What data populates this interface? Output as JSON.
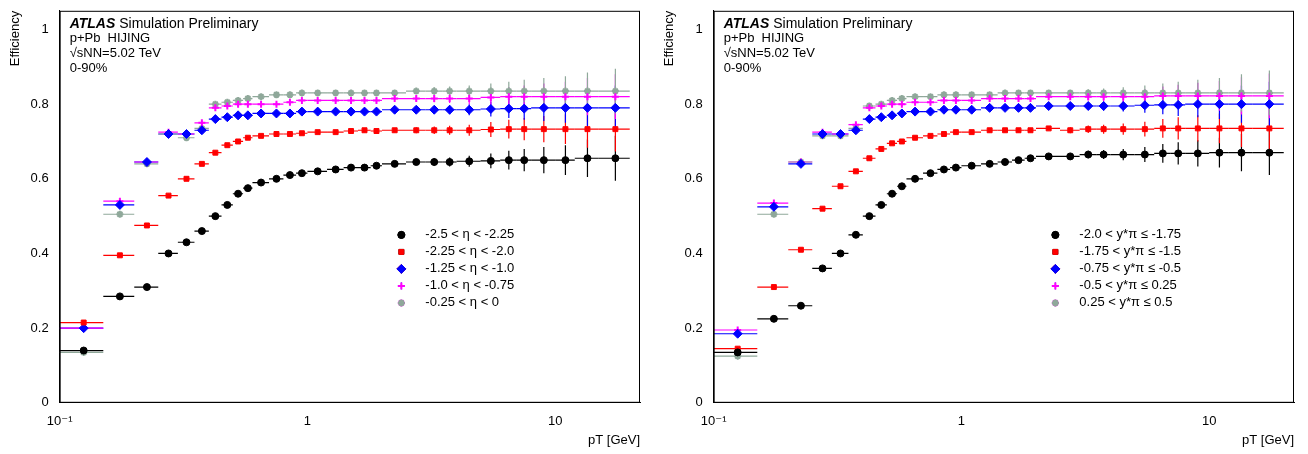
{
  "chart_data": [
    {
      "type": "scatter",
      "x_label": "pT [GeV]",
      "y_label": "Efficiency",
      "annotations": [
        "ATLAS Simulation Preliminary",
        "p+Pb  HIJING",
        "√sNN=5.02 TeV",
        "0-90%"
      ],
      "log": "x",
      "grid": false,
      "legend": "lower right",
      "xlim": [
        0.1,
        22
      ],
      "xticks": [
        {
          "value": 0.1,
          "label": "10⁻¹"
        },
        1,
        10
      ],
      "ylim": [
        0,
        1.05
      ],
      "yticks": [
        0,
        0.2,
        0.4,
        0.6,
        0.8,
        1
      ],
      "x": [
        0.125,
        0.175,
        0.225,
        0.275,
        0.325,
        0.375,
        0.425,
        0.475,
        0.525,
        0.575,
        0.65,
        0.75,
        0.85,
        0.95,
        1.1,
        1.3,
        1.5,
        1.7,
        1.9,
        2.25,
        2.75,
        3.25,
        3.75,
        4.5,
        5.5,
        6.5,
        7.5,
        9,
        11,
        13.5,
        17.5
      ],
      "xerr": [
        0.025,
        0.025,
        0.025,
        0.025,
        0.025,
        0.025,
        0.025,
        0.025,
        0.025,
        0.025,
        0.05,
        0.05,
        0.05,
        0.05,
        0.1,
        0.1,
        0.1,
        0.1,
        0.1,
        0.25,
        0.25,
        0.25,
        0.25,
        0.5,
        0.5,
        0.5,
        0.5,
        1,
        1,
        1.5,
        2.5
      ],
      "series": [
        {
          "name": "-2.5 < η < -2.25",
          "color": "#000000",
          "marker": "circle",
          "values": [
            0.14,
            0.285,
            0.31,
            0.4,
            0.43,
            0.46,
            0.5,
            0.53,
            0.56,
            0.575,
            0.59,
            0.6,
            0.61,
            0.615,
            0.62,
            0.625,
            0.63,
            0.63,
            0.635,
            0.64,
            0.645,
            0.645,
            0.645,
            0.647,
            0.648,
            0.65,
            0.65,
            0.65,
            0.65,
            0.655,
            0.655
          ],
          "yerr": [
            0.005,
            0.005,
            0.005,
            0.005,
            0.005,
            0.005,
            0.005,
            0.005,
            0.005,
            0.005,
            0.005,
            0.005,
            0.005,
            0.005,
            0.005,
            0.005,
            0.005,
            0.005,
            0.005,
            0.005,
            0.008,
            0.01,
            0.012,
            0.015,
            0.02,
            0.025,
            0.03,
            0.035,
            0.04,
            0.05,
            0.06
          ]
        },
        {
          "name": "-2.25 < η < -2.0",
          "color": "#ff0000",
          "marker": "square",
          "values": [
            0.215,
            0.395,
            0.475,
            0.555,
            0.6,
            0.64,
            0.67,
            0.69,
            0.7,
            0.71,
            0.715,
            0.72,
            0.72,
            0.722,
            0.725,
            0.725,
            0.728,
            0.73,
            0.728,
            0.73,
            0.73,
            0.73,
            0.73,
            0.73,
            0.732,
            0.733,
            0.733,
            0.733,
            0.733,
            0.733,
            0.733
          ],
          "yerr": [
            0.005,
            0.005,
            0.005,
            0.005,
            0.005,
            0.005,
            0.005,
            0.005,
            0.005,
            0.005,
            0.005,
            0.005,
            0.005,
            0.005,
            0.005,
            0.005,
            0.005,
            0.005,
            0.005,
            0.005,
            0.008,
            0.01,
            0.012,
            0.015,
            0.02,
            0.025,
            0.03,
            0.035,
            0.04,
            0.05,
            0.06
          ]
        },
        {
          "name": "-1.25 < η < -1.0",
          "color": "#0000ff",
          "marker": "diamond",
          "values": [
            0.2,
            0.53,
            0.645,
            0.72,
            0.72,
            0.73,
            0.76,
            0.765,
            0.77,
            0.77,
            0.775,
            0.775,
            0.775,
            0.78,
            0.78,
            0.78,
            0.78,
            0.78,
            0.78,
            0.785,
            0.785,
            0.785,
            0.785,
            0.785,
            0.787,
            0.788,
            0.788,
            0.79,
            0.79,
            0.79,
            0.79
          ],
          "yerr": [
            0.005,
            0.005,
            0.005,
            0.005,
            0.005,
            0.005,
            0.005,
            0.005,
            0.005,
            0.005,
            0.005,
            0.005,
            0.005,
            0.005,
            0.005,
            0.005,
            0.005,
            0.005,
            0.005,
            0.005,
            0.008,
            0.01,
            0.012,
            0.015,
            0.02,
            0.025,
            0.03,
            0.035,
            0.04,
            0.05,
            0.06
          ]
        },
        {
          "name": "-1.0 < η < -0.75",
          "color": "#ff00ff",
          "marker": "plus",
          "values": [
            0.2,
            0.54,
            0.645,
            0.725,
            0.72,
            0.75,
            0.79,
            0.795,
            0.8,
            0.8,
            0.8,
            0.8,
            0.805,
            0.81,
            0.81,
            0.81,
            0.81,
            0.81,
            0.81,
            0.815,
            0.815,
            0.815,
            0.815,
            0.815,
            0.818,
            0.82,
            0.82,
            0.82,
            0.82,
            0.82,
            0.82
          ],
          "yerr": [
            0.005,
            0.005,
            0.005,
            0.005,
            0.005,
            0.005,
            0.005,
            0.005,
            0.005,
            0.005,
            0.005,
            0.005,
            0.005,
            0.005,
            0.005,
            0.005,
            0.005,
            0.005,
            0.005,
            0.005,
            0.008,
            0.01,
            0.012,
            0.015,
            0.02,
            0.025,
            0.03,
            0.035,
            0.04,
            0.05,
            0.06
          ]
        },
        {
          "name": "-0.25 < η < 0",
          "color": "#8fa89a",
          "marker": "star",
          "values": [
            0.135,
            0.505,
            0.64,
            0.72,
            0.71,
            0.735,
            0.8,
            0.805,
            0.81,
            0.815,
            0.82,
            0.825,
            0.825,
            0.83,
            0.83,
            0.83,
            0.83,
            0.83,
            0.83,
            0.83,
            0.835,
            0.835,
            0.835,
            0.835,
            0.835,
            0.835,
            0.835,
            0.835,
            0.835,
            0.835,
            0.835
          ],
          "yerr": [
            0.005,
            0.005,
            0.005,
            0.005,
            0.005,
            0.005,
            0.005,
            0.005,
            0.005,
            0.005,
            0.005,
            0.005,
            0.005,
            0.005,
            0.005,
            0.005,
            0.005,
            0.005,
            0.005,
            0.005,
            0.008,
            0.01,
            0.012,
            0.015,
            0.02,
            0.025,
            0.03,
            0.035,
            0.04,
            0.05,
            0.06
          ]
        }
      ]
    },
    {
      "type": "scatter",
      "x_label": "pT [GeV]",
      "y_label": "Efficiency",
      "annotations": [
        "ATLAS Simulation Preliminary",
        "p+Pb  HIJING",
        "√sNN=5.02 TeV",
        "0-90%"
      ],
      "log": "x",
      "grid": false,
      "legend": "lower right",
      "xlim": [
        0.1,
        22
      ],
      "xticks": [
        {
          "value": 0.1,
          "label": "10⁻¹"
        },
        1,
        10
      ],
      "ylim": [
        0,
        1.05
      ],
      "yticks": [
        0,
        0.2,
        0.4,
        0.6,
        0.8,
        1
      ],
      "x": [
        0.125,
        0.175,
        0.225,
        0.275,
        0.325,
        0.375,
        0.425,
        0.475,
        0.525,
        0.575,
        0.65,
        0.75,
        0.85,
        0.95,
        1.1,
        1.3,
        1.5,
        1.7,
        1.9,
        2.25,
        2.75,
        3.25,
        3.75,
        4.5,
        5.5,
        6.5,
        7.5,
        9,
        11,
        13.5,
        17.5
      ],
      "xerr": [
        0.025,
        0.025,
        0.025,
        0.025,
        0.025,
        0.025,
        0.025,
        0.025,
        0.025,
        0.025,
        0.05,
        0.05,
        0.05,
        0.05,
        0.1,
        0.1,
        0.1,
        0.1,
        0.1,
        0.25,
        0.25,
        0.25,
        0.25,
        0.5,
        0.5,
        0.5,
        0.5,
        1,
        1,
        1.5,
        2.5
      ],
      "series": [
        {
          "name": "-2.0 < y*π ≤ -1.75",
          "color": "#000000",
          "marker": "circle",
          "values": [
            0.135,
            0.225,
            0.26,
            0.36,
            0.4,
            0.45,
            0.5,
            0.53,
            0.56,
            0.58,
            0.6,
            0.615,
            0.625,
            0.63,
            0.635,
            0.64,
            0.645,
            0.65,
            0.655,
            0.66,
            0.66,
            0.665,
            0.665,
            0.665,
            0.665,
            0.668,
            0.668,
            0.668,
            0.67,
            0.67,
            0.67
          ],
          "yerr": [
            0.005,
            0.005,
            0.005,
            0.005,
            0.005,
            0.005,
            0.005,
            0.005,
            0.005,
            0.005,
            0.005,
            0.005,
            0.005,
            0.005,
            0.005,
            0.005,
            0.005,
            0.005,
            0.005,
            0.005,
            0.008,
            0.01,
            0.012,
            0.015,
            0.02,
            0.025,
            0.03,
            0.035,
            0.04,
            0.05,
            0.06
          ]
        },
        {
          "name": "-1.75 < y*π ≤ -1.5",
          "color": "#ff0000",
          "marker": "square",
          "values": [
            0.145,
            0.31,
            0.41,
            0.52,
            0.58,
            0.62,
            0.655,
            0.68,
            0.695,
            0.7,
            0.71,
            0.715,
            0.72,
            0.725,
            0.725,
            0.73,
            0.73,
            0.73,
            0.73,
            0.735,
            0.73,
            0.733,
            0.733,
            0.733,
            0.733,
            0.735,
            0.735,
            0.735,
            0.735,
            0.735,
            0.735
          ],
          "yerr": [
            0.005,
            0.005,
            0.005,
            0.005,
            0.005,
            0.005,
            0.005,
            0.005,
            0.005,
            0.005,
            0.005,
            0.005,
            0.005,
            0.005,
            0.005,
            0.005,
            0.005,
            0.005,
            0.005,
            0.005,
            0.008,
            0.01,
            0.012,
            0.015,
            0.02,
            0.025,
            0.03,
            0.035,
            0.04,
            0.05,
            0.06
          ]
        },
        {
          "name": "-0.75 < y*π ≤ -0.5",
          "color": "#0000ff",
          "marker": "diamond",
          "values": [
            0.185,
            0.525,
            0.64,
            0.72,
            0.72,
            0.73,
            0.76,
            0.765,
            0.77,
            0.775,
            0.78,
            0.78,
            0.785,
            0.785,
            0.785,
            0.79,
            0.79,
            0.79,
            0.79,
            0.795,
            0.795,
            0.795,
            0.795,
            0.795,
            0.797,
            0.798,
            0.798,
            0.8,
            0.8,
            0.8,
            0.8
          ],
          "yerr": [
            0.005,
            0.005,
            0.005,
            0.005,
            0.005,
            0.005,
            0.005,
            0.005,
            0.005,
            0.005,
            0.005,
            0.005,
            0.005,
            0.005,
            0.005,
            0.005,
            0.005,
            0.005,
            0.005,
            0.005,
            0.008,
            0.01,
            0.012,
            0.015,
            0.02,
            0.025,
            0.03,
            0.035,
            0.04,
            0.05,
            0.06
          ]
        },
        {
          "name": "-0.5 < y*π ≤ 0.25",
          "color": "#ff00ff",
          "marker": "plus",
          "values": [
            0.195,
            0.535,
            0.645,
            0.725,
            0.72,
            0.745,
            0.79,
            0.795,
            0.8,
            0.8,
            0.805,
            0.805,
            0.81,
            0.81,
            0.81,
            0.815,
            0.815,
            0.815,
            0.815,
            0.82,
            0.82,
            0.82,
            0.82,
            0.82,
            0.82,
            0.822,
            0.822,
            0.822,
            0.822,
            0.822,
            0.822
          ],
          "yerr": [
            0.005,
            0.005,
            0.005,
            0.005,
            0.005,
            0.005,
            0.005,
            0.005,
            0.005,
            0.005,
            0.005,
            0.005,
            0.005,
            0.005,
            0.005,
            0.005,
            0.005,
            0.005,
            0.005,
            0.005,
            0.008,
            0.01,
            0.012,
            0.015,
            0.02,
            0.025,
            0.03,
            0.035,
            0.04,
            0.05,
            0.06
          ]
        },
        {
          "name": "0.25 < y*π ≤ 0.5",
          "color": "#8fa89a",
          "marker": "star",
          "values": [
            0.125,
            0.505,
            0.645,
            0.715,
            0.715,
            0.735,
            0.795,
            0.8,
            0.81,
            0.815,
            0.82,
            0.82,
            0.825,
            0.825,
            0.825,
            0.825,
            0.83,
            0.83,
            0.83,
            0.83,
            0.83,
            0.83,
            0.83,
            0.83,
            0.83,
            0.83,
            0.83,
            0.83,
            0.83,
            0.83,
            0.83
          ],
          "yerr": [
            0.005,
            0.005,
            0.005,
            0.005,
            0.005,
            0.005,
            0.005,
            0.005,
            0.005,
            0.005,
            0.005,
            0.005,
            0.005,
            0.005,
            0.005,
            0.005,
            0.005,
            0.005,
            0.005,
            0.005,
            0.008,
            0.01,
            0.012,
            0.015,
            0.02,
            0.025,
            0.03,
            0.035,
            0.04,
            0.05,
            0.06
          ]
        }
      ]
    }
  ]
}
